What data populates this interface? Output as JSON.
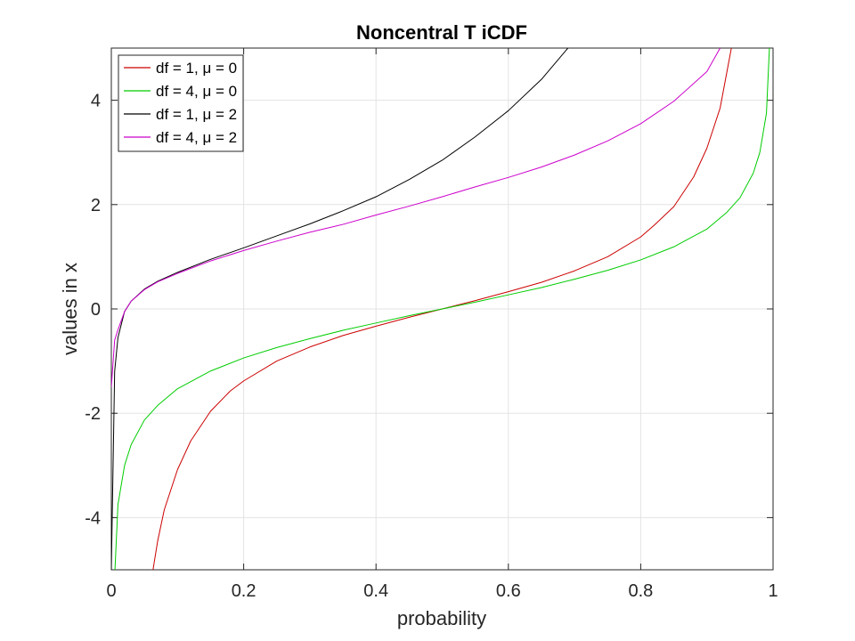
{
  "chart_data": {
    "type": "line",
    "title": "Noncentral T iCDF",
    "xlabel": "probability",
    "ylabel": "values in x",
    "xlim": [
      0,
      1
    ],
    "ylim": [
      -5,
      5
    ],
    "xticks": [
      0,
      0.2,
      0.4,
      0.6,
      0.8,
      1
    ],
    "xtick_labels": [
      "0",
      "0.2",
      "0.4",
      "0.6",
      "0.8",
      "1"
    ],
    "yticks": [
      -4,
      -2,
      0,
      2,
      4
    ],
    "ytick_labels": [
      "-4",
      "-2",
      "0",
      "2",
      "4"
    ],
    "grid": true,
    "legend_position": "top-left",
    "series": [
      {
        "name": "df = 1, μ = 0",
        "color": "#cc0000",
        "x": [
          0.063,
          0.07,
          0.08,
          0.1,
          0.12,
          0.15,
          0.18,
          0.2,
          0.25,
          0.3,
          0.35,
          0.4,
          0.45,
          0.5,
          0.55,
          0.6,
          0.65,
          0.7,
          0.75,
          0.8,
          0.82,
          0.85,
          0.88,
          0.9,
          0.92,
          0.937
        ],
        "y": [
          -5.0,
          -4.45,
          -3.85,
          -3.08,
          -2.53,
          -1.96,
          -1.57,
          -1.38,
          -1.0,
          -0.73,
          -0.51,
          -0.33,
          -0.16,
          0.0,
          0.16,
          0.33,
          0.51,
          0.73,
          1.0,
          1.38,
          1.6,
          1.96,
          2.53,
          3.08,
          3.85,
          5.0
        ]
      },
      {
        "name": "df = 4, μ = 0",
        "color": "#00cc00",
        "x": [
          0.0055,
          0.01,
          0.02,
          0.03,
          0.05,
          0.07,
          0.1,
          0.15,
          0.2,
          0.25,
          0.3,
          0.35,
          0.4,
          0.45,
          0.5,
          0.55,
          0.6,
          0.65,
          0.7,
          0.75,
          0.8,
          0.85,
          0.9,
          0.93,
          0.95,
          0.97,
          0.98,
          0.99,
          0.9945
        ],
        "y": [
          -5.0,
          -3.75,
          -3.0,
          -2.6,
          -2.13,
          -1.85,
          -1.53,
          -1.19,
          -0.94,
          -0.74,
          -0.57,
          -0.41,
          -0.27,
          -0.13,
          0.0,
          0.13,
          0.27,
          0.41,
          0.57,
          0.74,
          0.94,
          1.19,
          1.53,
          1.85,
          2.13,
          2.6,
          3.0,
          3.75,
          5.0
        ]
      },
      {
        "name": "df = 1, μ = 2",
        "color": "#000000",
        "x": [
          0.0,
          0.005,
          0.01,
          0.02,
          0.03,
          0.05,
          0.07,
          0.1,
          0.15,
          0.2,
          0.25,
          0.3,
          0.35,
          0.4,
          0.45,
          0.5,
          0.55,
          0.6,
          0.65,
          0.69
        ],
        "y": [
          -5.0,
          -1.2,
          -0.55,
          -0.05,
          0.15,
          0.38,
          0.53,
          0.7,
          0.95,
          1.17,
          1.4,
          1.63,
          1.88,
          2.15,
          2.48,
          2.85,
          3.3,
          3.8,
          4.4,
          5.0
        ]
      },
      {
        "name": "df = 4, μ = 2",
        "color": "#cc00cc",
        "x": [
          0.0,
          0.005,
          0.01,
          0.02,
          0.03,
          0.05,
          0.07,
          0.1,
          0.15,
          0.2,
          0.25,
          0.3,
          0.35,
          0.4,
          0.45,
          0.5,
          0.55,
          0.6,
          0.65,
          0.7,
          0.75,
          0.8,
          0.85,
          0.9,
          0.92
        ],
        "y": [
          -1.5,
          -0.6,
          -0.4,
          -0.05,
          0.15,
          0.37,
          0.52,
          0.68,
          0.92,
          1.12,
          1.3,
          1.47,
          1.62,
          1.8,
          1.97,
          2.15,
          2.34,
          2.52,
          2.72,
          2.95,
          3.22,
          3.55,
          3.98,
          4.55,
          5.0
        ]
      }
    ]
  }
}
